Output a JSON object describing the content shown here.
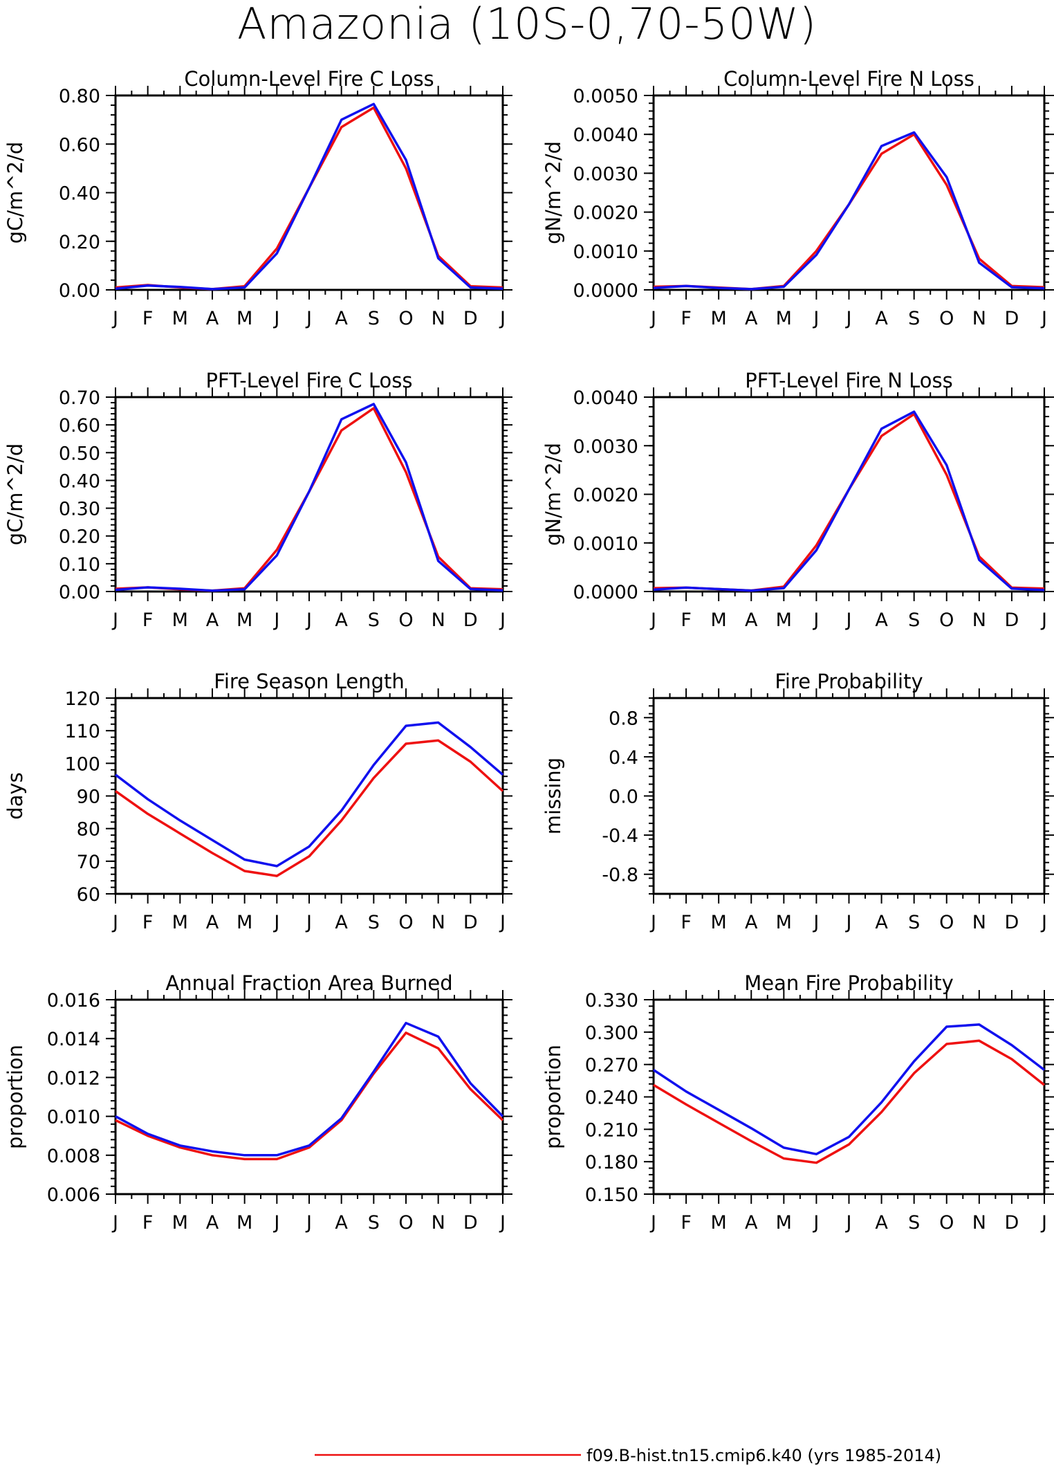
{
  "title": "Amazonia (10S-0,70-50W)",
  "colors": {
    "series1": "#ee1111",
    "series2": "#1111ee",
    "axis": "#000000"
  },
  "legend": {
    "entries": [
      "f09.B-hist.tn15.cmip6.k40 (yrs 1985-2014)"
    ]
  },
  "chart_data": [
    {
      "type": "line",
      "title": "Column-Level Fire C Loss",
      "ylabel": "gC/m^2/d",
      "categories": [
        "J",
        "F",
        "M",
        "A",
        "M",
        "J",
        "J",
        "A",
        "S",
        "O",
        "N",
        "D",
        "J"
      ],
      "ylim": [
        0,
        0.8
      ],
      "yticks": [
        "0.00",
        "0.20",
        "0.40",
        "0.60",
        "0.80"
      ],
      "series": [
        {
          "values": [
            0.01,
            0.02,
            0.01,
            0.003,
            0.015,
            0.17,
            0.42,
            0.67,
            0.75,
            0.5,
            0.14,
            0.015,
            0.01
          ]
        },
        {
          "values": [
            0.005,
            0.018,
            0.012,
            0.003,
            0.01,
            0.15,
            0.42,
            0.7,
            0.765,
            0.535,
            0.13,
            0.01,
            0.005
          ]
        }
      ]
    },
    {
      "type": "line",
      "title": "Column-Level Fire N Loss",
      "ylabel": "gN/m^2/d",
      "categories": [
        "J",
        "F",
        "M",
        "A",
        "M",
        "J",
        "J",
        "A",
        "S",
        "O",
        "N",
        "D",
        "J"
      ],
      "ylim": [
        0,
        0.005
      ],
      "yticks": [
        "0.0000",
        "0.0010",
        "0.0020",
        "0.0030",
        "0.0040",
        "0.0050"
      ],
      "series": [
        {
          "values": [
            8e-05,
            0.0001,
            6e-05,
            2e-05,
            0.0001,
            0.001,
            0.0022,
            0.0035,
            0.004,
            0.0027,
            0.0008,
            0.0001,
            7e-05
          ]
        },
        {
          "values": [
            5e-05,
            0.0001,
            5e-05,
            2e-05,
            8e-05,
            0.0009,
            0.0022,
            0.0037,
            0.00405,
            0.0029,
            0.0007,
            7e-05,
            4e-05
          ]
        }
      ]
    },
    {
      "type": "line",
      "title": "PFT-Level Fire C Loss",
      "ylabel": "gC/m^2/d",
      "categories": [
        "J",
        "F",
        "M",
        "A",
        "M",
        "J",
        "J",
        "A",
        "S",
        "O",
        "N",
        "D",
        "J"
      ],
      "ylim": [
        0,
        0.7
      ],
      "yticks": [
        "0.00",
        "0.10",
        "0.20",
        "0.30",
        "0.40",
        "0.50",
        "0.60",
        "0.70"
      ],
      "series": [
        {
          "values": [
            0.01,
            0.015,
            0.008,
            0.003,
            0.012,
            0.15,
            0.36,
            0.58,
            0.66,
            0.43,
            0.125,
            0.012,
            0.008
          ]
        },
        {
          "values": [
            0.006,
            0.015,
            0.01,
            0.003,
            0.008,
            0.13,
            0.36,
            0.62,
            0.675,
            0.465,
            0.11,
            0.009,
            0.004
          ]
        }
      ]
    },
    {
      "type": "line",
      "title": "PFT-Level Fire N Loss",
      "ylabel": "gN/m^2/d",
      "categories": [
        "J",
        "F",
        "M",
        "A",
        "M",
        "J",
        "J",
        "A",
        "S",
        "O",
        "N",
        "D",
        "J"
      ],
      "ylim": [
        0,
        0.004
      ],
      "yticks": [
        "0.0000",
        "0.0010",
        "0.0020",
        "0.0030",
        "0.0040"
      ],
      "series": [
        {
          "values": [
            7e-05,
            8e-05,
            5e-05,
            2e-05,
            0.0001,
            0.00095,
            0.0021,
            0.0032,
            0.00365,
            0.0024,
            0.00072,
            8e-05,
            6e-05
          ]
        },
        {
          "values": [
            4e-05,
            8e-05,
            5e-05,
            2e-05,
            7e-05,
            0.00085,
            0.0021,
            0.00335,
            0.0037,
            0.0026,
            0.00065,
            6e-05,
            3e-05
          ]
        }
      ]
    },
    {
      "type": "line",
      "title": "Fire Season Length",
      "ylabel": "days",
      "categories": [
        "J",
        "F",
        "M",
        "A",
        "M",
        "J",
        "J",
        "A",
        "S",
        "O",
        "N",
        "D",
        "J"
      ],
      "ylim": [
        60,
        120
      ],
      "yticks": [
        "60",
        "70",
        "80",
        "90",
        "100",
        "110",
        "120"
      ],
      "series": [
        {
          "values": [
            91.5,
            84.5,
            78.5,
            72.5,
            67,
            65.5,
            71.5,
            82.5,
            95.5,
            106,
            107,
            100.5,
            91.5
          ]
        },
        {
          "values": [
            96.5,
            89,
            82.5,
            76.5,
            70.5,
            68.5,
            74.5,
            85.5,
            99.5,
            111.5,
            112.5,
            105,
            96.5
          ]
        }
      ]
    },
    {
      "type": "line",
      "title": "Fire Probability",
      "ylabel": "missing",
      "categories": [
        "J",
        "F",
        "M",
        "A",
        "M",
        "J",
        "J",
        "A",
        "S",
        "O",
        "N",
        "D",
        "J"
      ],
      "ylim": [
        -1,
        1
      ],
      "yticks": [
        "-0.8",
        "-0.4",
        "0.0",
        "0.4",
        "0.8"
      ],
      "series": []
    },
    {
      "type": "line",
      "title": "Annual Fraction Area Burned",
      "ylabel": "proportion",
      "categories": [
        "J",
        "F",
        "M",
        "A",
        "M",
        "J",
        "J",
        "A",
        "S",
        "O",
        "N",
        "D",
        "J"
      ],
      "ylim": [
        0.006,
        0.016
      ],
      "yticks": [
        "0.006",
        "0.008",
        "0.010",
        "0.012",
        "0.014",
        "0.016"
      ],
      "series": [
        {
          "values": [
            0.0098,
            0.009,
            0.0084,
            0.008,
            0.0078,
            0.0078,
            0.0084,
            0.0098,
            0.0122,
            0.0143,
            0.0135,
            0.0114,
            0.0098
          ]
        },
        {
          "values": [
            0.01,
            0.0091,
            0.0085,
            0.0082,
            0.008,
            0.008,
            0.0085,
            0.0099,
            0.0123,
            0.0148,
            0.0141,
            0.0117,
            0.01
          ]
        }
      ]
    },
    {
      "type": "line",
      "title": "Mean Fire Probability",
      "ylabel": "proportion",
      "categories": [
        "J",
        "F",
        "M",
        "A",
        "M",
        "J",
        "J",
        "A",
        "S",
        "O",
        "N",
        "D",
        "J"
      ],
      "ylim": [
        0.15,
        0.33
      ],
      "yticks": [
        "0.150",
        "0.180",
        "0.210",
        "0.240",
        "0.270",
        "0.300",
        "0.330"
      ],
      "series": [
        {
          "values": [
            0.251,
            0.233,
            0.216,
            0.199,
            0.183,
            0.179,
            0.196,
            0.226,
            0.262,
            0.289,
            0.292,
            0.275,
            0.251
          ]
        },
        {
          "values": [
            0.265,
            0.245,
            0.228,
            0.211,
            0.193,
            0.187,
            0.203,
            0.235,
            0.273,
            0.305,
            0.307,
            0.288,
            0.265
          ]
        }
      ]
    }
  ]
}
